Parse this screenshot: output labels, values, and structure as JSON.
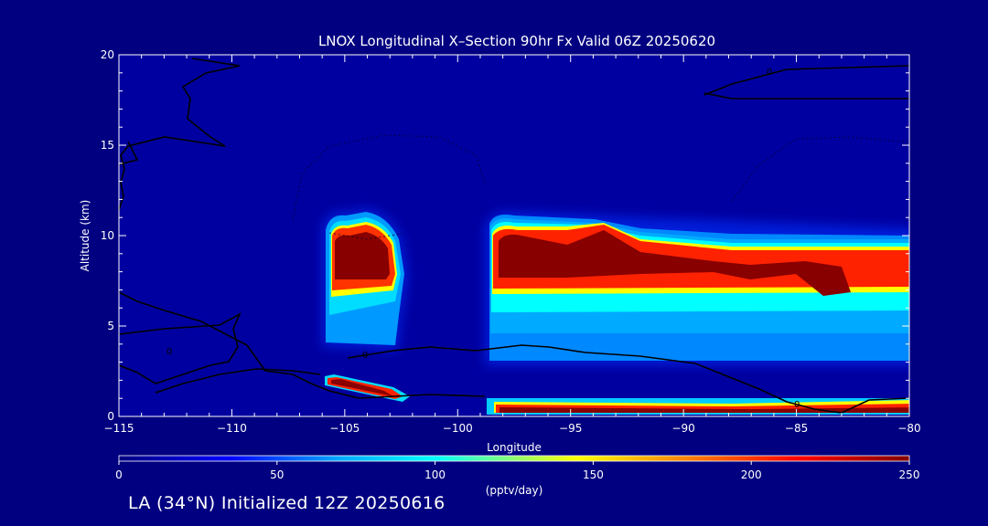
{
  "chart_data": {
    "type": "heatmap",
    "title": "LNOX Longitudinal X–Section 90hr  Fx Valid 06Z 20250620",
    "xlabel": "Longitude",
    "ylabel": "Altitude (km)",
    "xlim": [
      -115,
      -80
    ],
    "ylim": [
      0,
      20
    ],
    "x_ticks": [
      -115,
      -110,
      -105,
      -100,
      -95,
      -90,
      -85,
      -80
    ],
    "x_tick_labels": [
      "−115",
      "−110",
      "−105",
      "−100",
      "−95",
      "−90",
      "−85",
      "−80"
    ],
    "y_ticks": [
      0,
      5,
      10,
      15,
      20
    ],
    "y_tick_labels": [
      "0",
      "5",
      "10",
      "15",
      "20"
    ],
    "colorbar": {
      "min": 0,
      "max": 250,
      "ticks": [
        0,
        50,
        100,
        150,
        200,
        250
      ],
      "tick_labels": [
        "0",
        "50",
        "100",
        "150",
        "200",
        "250"
      ],
      "label": "(pptv/day)",
      "colors": [
        "#000080",
        "#0000ff",
        "#00aaff",
        "#00ffff",
        "#ffff00",
        "#ff8000",
        "#ff0000",
        "#800000"
      ]
    },
    "background_color": "#0000a0",
    "regions": [
      {
        "x": [
          -105.5,
          -102.5
        ],
        "y": [
          3.5,
          11.2
        ],
        "peak": 250
      },
      {
        "x": [
          -98.5,
          -79.5
        ],
        "y": [
          4.0,
          11.0
        ],
        "peak": 250
      },
      {
        "x": [
          -106,
          -102
        ],
        "y": [
          0.8,
          2.2
        ],
        "peak": 230
      },
      {
        "x": [
          -98.5,
          -80
        ],
        "y": [
          0,
          0.8
        ],
        "peak": 240
      }
    ],
    "contour_labels": [
      "0",
      "0",
      "0",
      "0"
    ]
  },
  "footer": "LA (34°N) Initialized 12Z 20250616"
}
